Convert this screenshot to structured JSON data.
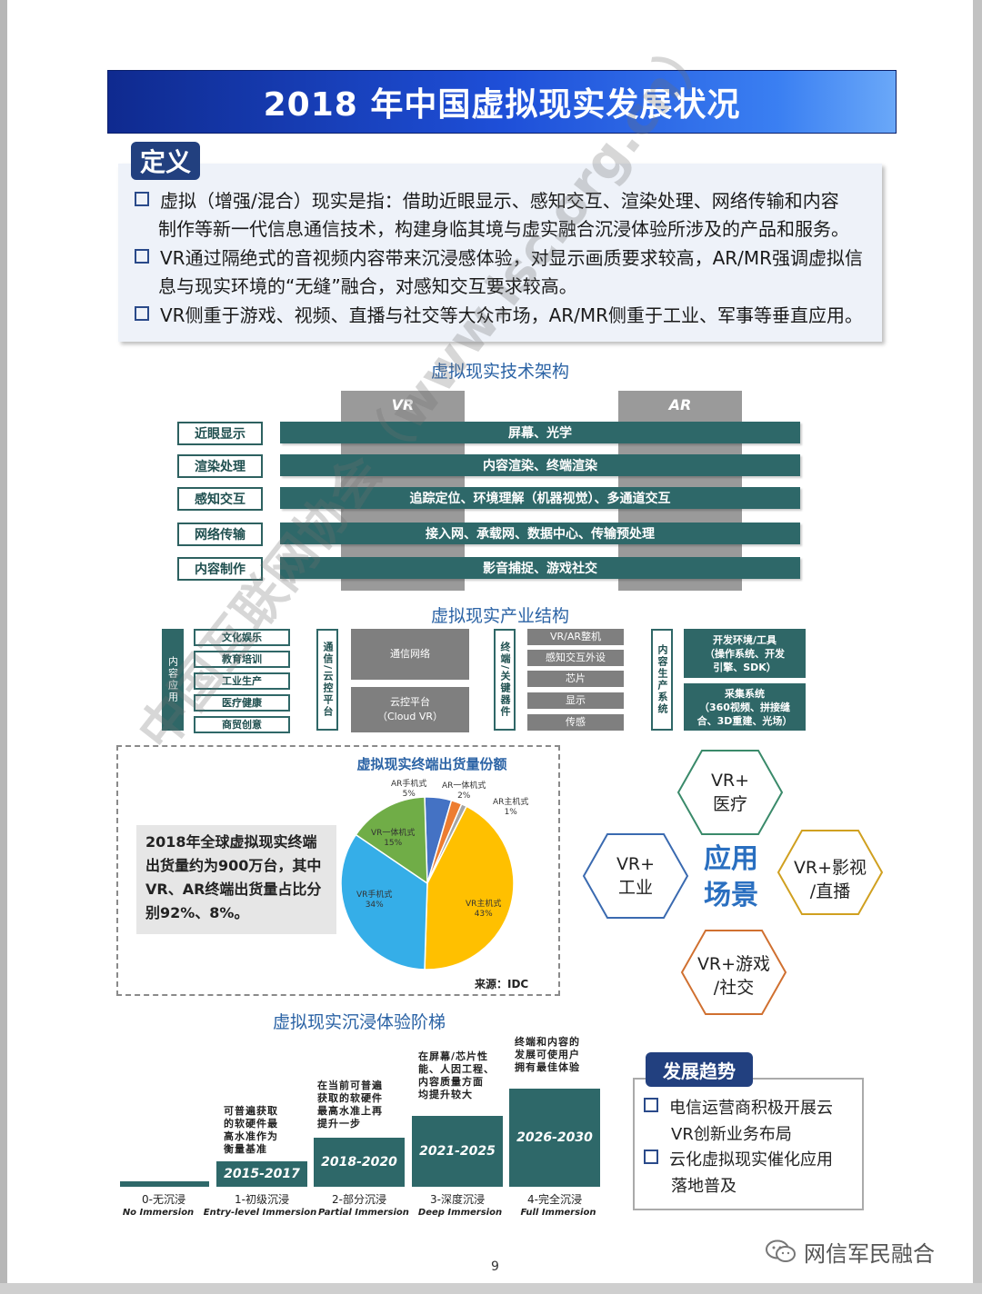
{
  "title": "2018 年中国虚拟现实发展状况",
  "definition": {
    "tag": "定义",
    "items": [
      [
        "虚拟（增强/混合）现实是指：借助近眼显示、感知交互、渲染处理、网络传输和内容",
        "制作等新一代信息通信技术，构建身临其境与虚实融合沉浸体验所涉及的产品和服务。"
      ],
      [
        "VR通过隔绝式的音视频内容带来沉浸感体验，对显示画质要求较高，AR/MR强调虚拟信",
        "息与现实环境的“无缝”融合，对感知交互要求较高。"
      ],
      [
        "VR侧重于游戏、视频、直播与社交等大众市场，AR/MR侧重于工业、军事等垂直应用。"
      ]
    ]
  },
  "tech_arch": {
    "title": "虚拟现实技术架构",
    "col_vr": "VR",
    "col_ar": "AR",
    "rows": [
      {
        "label": "近眼显示",
        "content": "屏幕、光学"
      },
      {
        "label": "渲染处理",
        "content": "内容渲染、终端渲染"
      },
      {
        "label": "感知交互",
        "content": "追踪定位、环境理解（机器视觉）、多通道交互"
      },
      {
        "label": "网络传输",
        "content": "接入网、承载网、数据中心、传输预处理"
      },
      {
        "label": "内容制作",
        "content": "影音捕捉、游戏社交"
      }
    ]
  },
  "industry": {
    "title": "虚拟现实产业结构",
    "content_app": {
      "label": "内容应用",
      "items": [
        "文化娱乐",
        "教育培训",
        "工业生产",
        "医疗健康",
        "商贸创意"
      ]
    },
    "comm": {
      "label": "通信/云控平台",
      "items": [
        "通信网络",
        "云控平台\n（Cloud VR）"
      ]
    },
    "terminal": {
      "label": "终端/关键器件",
      "items": [
        "VR/AR整机",
        "感知交互外设",
        "芯片",
        "显示",
        "传感"
      ]
    },
    "production": {
      "label": "内容生产系统",
      "items": [
        "开发环境/工具\n（操作系统、开发\n引擎、SDK）",
        "采集系统\n（360视频、拼接缝\n合、3D重建、光场）"
      ]
    }
  },
  "pie": {
    "title": "虚拟现实终端出货量份额",
    "callout": "2018年全球虚拟现实终端出货量约为900万台，其中VR、AR终端出货量占比分别92%、8%。",
    "source": "来源：IDC"
  },
  "chart_data": {
    "type": "pie",
    "title": "虚拟现实终端出货量份额",
    "categories": [
      "AR手机式",
      "AR一体机式",
      "AR主机式",
      "VR主机式",
      "VR手机式",
      "VR一体机式"
    ],
    "values": [
      5,
      2,
      1,
      43,
      34,
      15
    ],
    "labels": [
      "5%",
      "2%",
      "1%",
      "43%",
      "34%",
      "15%"
    ],
    "colors": [
      "#4472c4",
      "#ed7d31",
      "#a5a5a5",
      "#ffc000",
      "#35aee8",
      "#70ad47"
    ]
  },
  "apps": {
    "center": "应用\n场景",
    "items": [
      "VR+\n医疗",
      "VR+\n工业",
      "VR+影视\n/直播",
      "VR+游戏\n/社交"
    ]
  },
  "ladder": {
    "title": "虚拟现实沉浸体验阶梯",
    "steps": [
      {
        "cn": "0-无沉浸",
        "en": "No Immersion",
        "period": "",
        "note": ""
      },
      {
        "cn": "1-初级沉浸",
        "en": "Entry-level Immersion",
        "period": "2015-2017",
        "note": "可普遍获取\n的软硬件最\n高水准作为\n衡量基准"
      },
      {
        "cn": "2-部分沉浸",
        "en": "Partial Immersion",
        "period": "2018-2020",
        "note": "在当前可普遍\n获取的软硬件\n最高水准上再\n提升一步"
      },
      {
        "cn": "3-深度沉浸",
        "en": "Deep Immersion",
        "period": "2021-2025",
        "note": "在屏幕/芯片性\n能、人因工程、\n内容质量方面\n均提升较大"
      },
      {
        "cn": "4-完全沉浸",
        "en": "Full Immersion",
        "period": "2026-2030",
        "note": "终端和内容的\n发展可使用户\n拥有最佳体验"
      }
    ]
  },
  "trend": {
    "tag": "发展趋势",
    "items": [
      [
        "电信运营商积极开展云",
        "VR创新业务布局"
      ],
      [
        "云化虚拟现实催化应用",
        "落地普及"
      ]
    ]
  },
  "watermark": "中国互联网协会（www.isc.org.cn）",
  "footer": {
    "page": "9",
    "brand": "网信军民融合"
  }
}
